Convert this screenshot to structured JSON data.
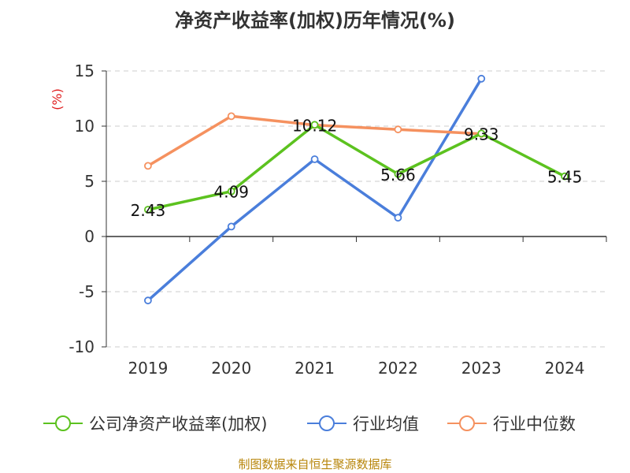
{
  "chart_data": {
    "type": "line",
    "title": "净资产收益率(加权)历年情况(%)",
    "ylabel": "(%)",
    "xlabel": "",
    "categories": [
      "2019",
      "2020",
      "2021",
      "2022",
      "2023",
      "2024"
    ],
    "ylim": [
      -10,
      15
    ],
    "yticks": [
      15,
      10,
      5,
      0,
      -5,
      -10
    ],
    "grid": true,
    "legend_position": "bottom",
    "series": [
      {
        "name": "公司净资产收益率(加权)",
        "color": "#5cc21f",
        "show_labels": true,
        "values": [
          2.43,
          4.09,
          10.12,
          5.66,
          9.33,
          5.45
        ],
        "labels": [
          "2.43",
          "4.09",
          "10.12",
          "5.66",
          "9.33",
          "5.45"
        ]
      },
      {
        "name": "行业均值",
        "color": "#4a7edb",
        "show_labels": false,
        "values": [
          -5.8,
          0.9,
          7.0,
          1.7,
          14.3,
          null
        ]
      },
      {
        "name": "行业中位数",
        "color": "#f5915f",
        "show_labels": false,
        "values": [
          6.4,
          10.9,
          10.1,
          9.7,
          9.3,
          null
        ]
      }
    ]
  },
  "footer": {
    "source": "制图数据来自恒生聚源数据库"
  }
}
